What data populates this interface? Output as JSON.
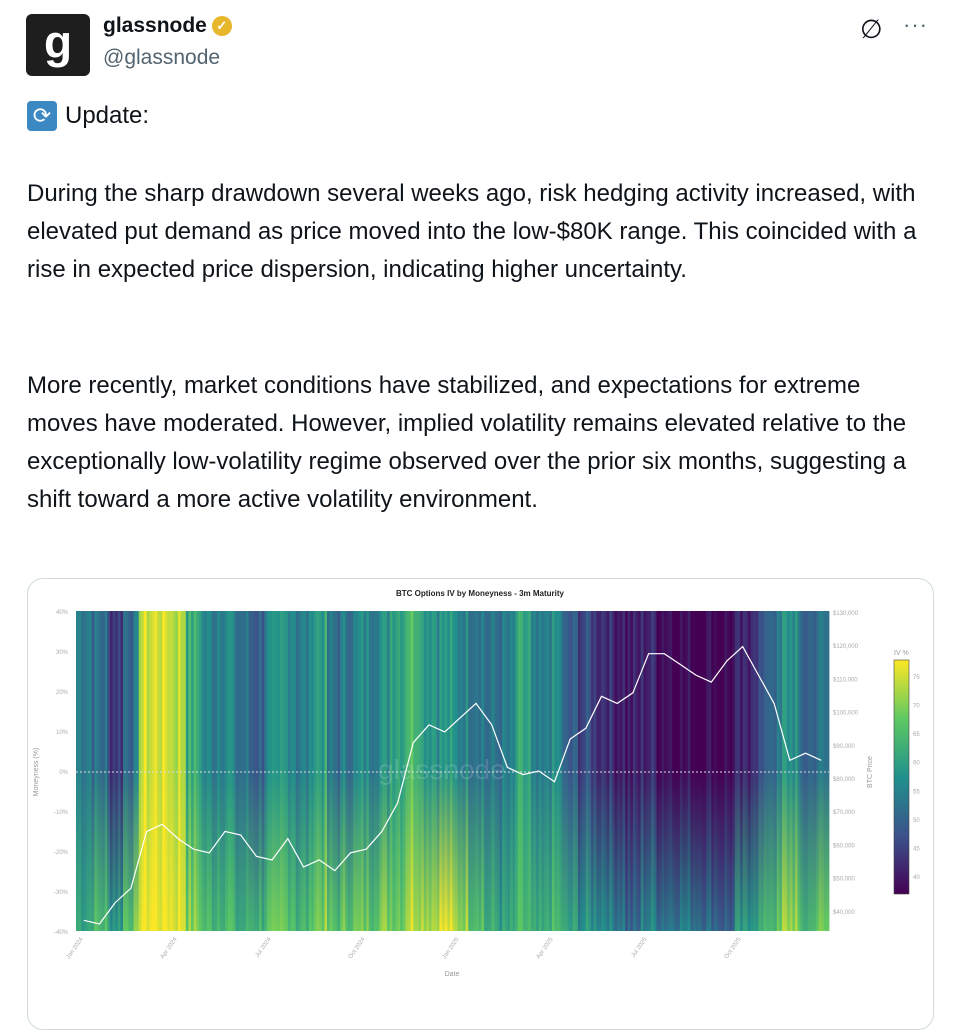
{
  "tweet": {
    "avatar_letter": "g",
    "name": "glassnode",
    "verified_icon": "check-badge-icon",
    "handle": "@glassnode",
    "update_label": "Update:",
    "paragraphs": [
      "During the sharp drawdown several weeks ago, risk hedging activity increased, with elevated put demand as price moved into the low-$80K range. This coincided with a rise in expected price dispersion, indicating higher uncertainty.",
      "More recently, market conditions have stabilized, and expectations for extreme moves have moderated. However, implied volatility remains elevated relative to the exceptionally low-volatility regime observed over the prior six months, suggesting a shift toward a more active volatility environment."
    ],
    "more_label": "···",
    "grok_icon": "∅"
  },
  "colors": {
    "badge": "#e8b62a",
    "update_icon": "#3b88c3",
    "price_line": "#ffffff"
  },
  "chart_data": {
    "type": "heatmap",
    "title": "BTC Options IV by Moneyness - 3m Maturity",
    "xlabel": "Date",
    "ylabel": "Moneyness (%)",
    "y2label": "BTC Price",
    "colorbar_label": "IV %",
    "watermark": "glassnode",
    "x_ticks": [
      "Jan 2024",
      "Apr 2024",
      "Jul 2024",
      "Oct 2024",
      "Jan 2025",
      "Apr 2025",
      "Jul 2025",
      "Oct 2025"
    ],
    "y_ticks": [
      "40%",
      "30%",
      "20%",
      "10%",
      "0%",
      "-10%",
      "-20%",
      "-30%",
      "-40%"
    ],
    "ylim": [
      -40,
      40
    ],
    "y2_ticks": [
      "$130,000",
      "$120,000",
      "$110,000",
      "$100,000",
      "$90,000",
      "$80,000",
      "$70,000",
      "$60,000",
      "$50,000",
      "$40,000"
    ],
    "y2lim": [
      40000,
      130000
    ],
    "colorbar_ticks": [
      "75",
      "70",
      "65",
      "60",
      "55",
      "50",
      "45",
      "40"
    ],
    "colorbar_range": [
      37,
      78
    ],
    "periods": "half-months from Jan 2024 to Dec 2025",
    "iv_upper": [
      55,
      52,
      45,
      52,
      75,
      76,
      74,
      62,
      55,
      57,
      52,
      50,
      55,
      58,
      54,
      60,
      52,
      54,
      56,
      57,
      62,
      66,
      60,
      58,
      56,
      55,
      52,
      53,
      60,
      52,
      56,
      48,
      46,
      44,
      42,
      40,
      42,
      40,
      38,
      38,
      38,
      38,
      40,
      46,
      52,
      58,
      50,
      52
    ],
    "iv_lower": [
      62,
      65,
      60,
      68,
      78,
      78,
      77,
      70,
      65,
      66,
      62,
      64,
      66,
      68,
      64,
      70,
      66,
      68,
      68,
      70,
      70,
      75,
      74,
      76,
      72,
      68,
      62,
      60,
      64,
      60,
      64,
      60,
      58,
      58,
      55,
      50,
      56,
      54,
      55,
      54,
      52,
      50,
      58,
      62,
      66,
      72,
      64,
      68
    ],
    "btc_price_k": [
      43,
      42,
      48,
      52,
      68,
      70,
      66,
      63,
      62,
      68,
      67,
      61,
      60,
      66,
      58,
      60,
      57,
      62,
      63,
      68,
      76,
      93,
      98,
      96,
      100,
      104,
      98,
      86,
      84,
      85,
      82,
      94,
      97,
      106,
      104,
      107,
      118,
      118,
      115,
      112,
      110,
      116,
      120,
      112,
      104,
      88,
      90,
      88
    ]
  }
}
